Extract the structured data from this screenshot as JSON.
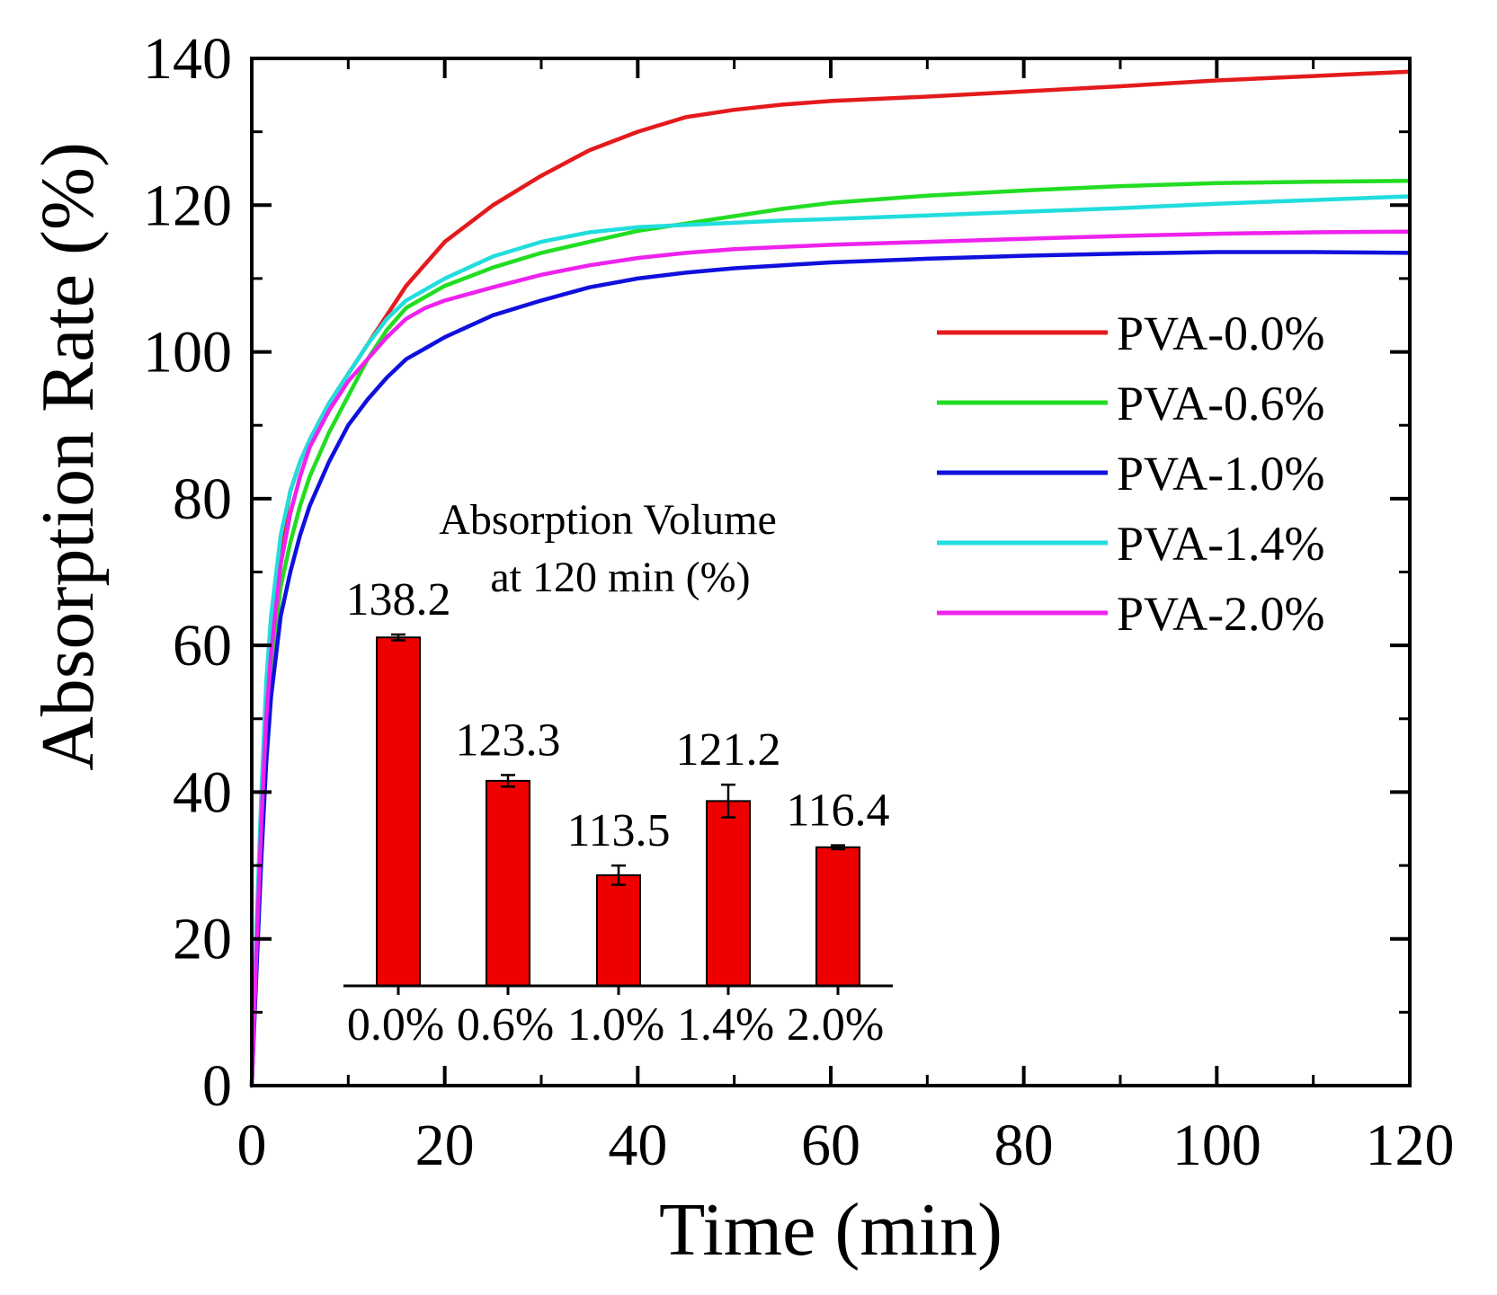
{
  "chart_data": [
    {
      "type": "line",
      "xlabel": "Time (min)",
      "ylabel": "Absorption Rate (%)",
      "xlim": [
        0,
        120
      ],
      "ylim": [
        0,
        140
      ],
      "xticks": [
        "0",
        "20",
        "40",
        "60",
        "80",
        "100",
        "120"
      ],
      "yticks": [
        "0",
        "20",
        "40",
        "60",
        "80",
        "100",
        "120",
        "140"
      ],
      "grid": false,
      "legend_position": "upper-right",
      "series": [
        {
          "name": "PVA-0.0%",
          "color": "#e41a1c",
          "x": [
            0,
            0.5,
            1,
            1.5,
            2,
            3,
            4,
            5,
            6,
            8,
            10,
            12,
            14,
            16,
            18,
            20,
            25,
            30,
            35,
            40,
            45,
            50,
            55,
            60,
            70,
            80,
            90,
            100,
            110,
            120
          ],
          "y": [
            0,
            20,
            38,
            52,
            62,
            74,
            81,
            85,
            88,
            93,
            97,
            101,
            105,
            109,
            112,
            115,
            120,
            124,
            127.5,
            130,
            132,
            133,
            133.7,
            134.2,
            134.8,
            135.5,
            136.2,
            137,
            137.6,
            138.2
          ]
        },
        {
          "name": "PVA-0.6%",
          "color": "#22dd22",
          "x": [
            0,
            0.5,
            1,
            1.5,
            2,
            3,
            4,
            5,
            6,
            8,
            10,
            12,
            14,
            16,
            18,
            20,
            25,
            30,
            35,
            40,
            45,
            50,
            55,
            60,
            70,
            80,
            90,
            100,
            110,
            120
          ],
          "y": [
            0,
            18,
            34,
            47,
            57,
            68,
            74,
            79,
            83,
            89,
            94,
            99,
            103,
            106,
            107.5,
            109,
            111.5,
            113.5,
            115,
            116.5,
            117.5,
            118.5,
            119.5,
            120.3,
            121.3,
            122,
            122.6,
            123,
            123.2,
            123.3
          ]
        },
        {
          "name": "PVA-1.0%",
          "color": "#1010dd",
          "x": [
            0,
            0.5,
            1,
            1.5,
            2,
            3,
            4,
            5,
            6,
            8,
            10,
            12,
            14,
            16,
            18,
            20,
            25,
            30,
            35,
            40,
            45,
            50,
            55,
            60,
            70,
            80,
            90,
            100,
            110,
            120
          ],
          "y": [
            0,
            16,
            31,
            44,
            53,
            64,
            70,
            75,
            79,
            85,
            90,
            93.5,
            96.5,
            99,
            100.5,
            102,
            105,
            107,
            108.8,
            110,
            110.8,
            111.4,
            111.8,
            112.2,
            112.7,
            113.1,
            113.4,
            113.6,
            113.6,
            113.5
          ]
        },
        {
          "name": "PVA-1.4%",
          "color": "#22dddd",
          "x": [
            0,
            0.5,
            1,
            1.5,
            2,
            3,
            4,
            5,
            6,
            8,
            10,
            12,
            14,
            16,
            18,
            20,
            25,
            30,
            35,
            40,
            45,
            50,
            55,
            60,
            70,
            80,
            90,
            100,
            110,
            120
          ],
          "y": [
            0,
            22,
            40,
            55,
            64,
            75,
            81,
            85,
            88,
            93,
            97,
            101,
            104.5,
            107,
            108.5,
            110,
            113,
            115,
            116.3,
            117,
            117.3,
            117.6,
            117.9,
            118.1,
            118.6,
            119.1,
            119.6,
            120.2,
            120.7,
            121.2
          ]
        },
        {
          "name": "PVA-2.0%",
          "color": "#ee22ee",
          "x": [
            0,
            0.5,
            1,
            1.5,
            2,
            3,
            4,
            5,
            6,
            8,
            10,
            12,
            14,
            16,
            18,
            20,
            25,
            30,
            35,
            40,
            45,
            50,
            55,
            60,
            70,
            80,
            90,
            100,
            110,
            120
          ],
          "y": [
            0,
            19,
            36,
            50,
            59,
            71,
            78,
            83,
            87,
            92,
            96,
            99,
            102,
            104.5,
            106,
            107,
            108.8,
            110.5,
            111.8,
            112.8,
            113.5,
            114,
            114.3,
            114.6,
            115,
            115.4,
            115.8,
            116.1,
            116.3,
            116.4
          ]
        }
      ]
    },
    {
      "type": "bar",
      "title": [
        "Absorption Volume",
        "at 120 min (%)"
      ],
      "categories": [
        "0.0%",
        "0.6%",
        "1.0%",
        "1.4%",
        "2.0%"
      ],
      "values": [
        138.2,
        123.3,
        113.5,
        121.2,
        116.4
      ],
      "value_labels": [
        "138.2",
        "123.3",
        "113.5",
        "121.2",
        "116.4"
      ],
      "errors": [
        0.3,
        0.6,
        1.0,
        1.7,
        0.2
      ],
      "ylim": [
        102,
        140
      ],
      "color": "#ee0000",
      "axes_visible": "x-only"
    }
  ]
}
